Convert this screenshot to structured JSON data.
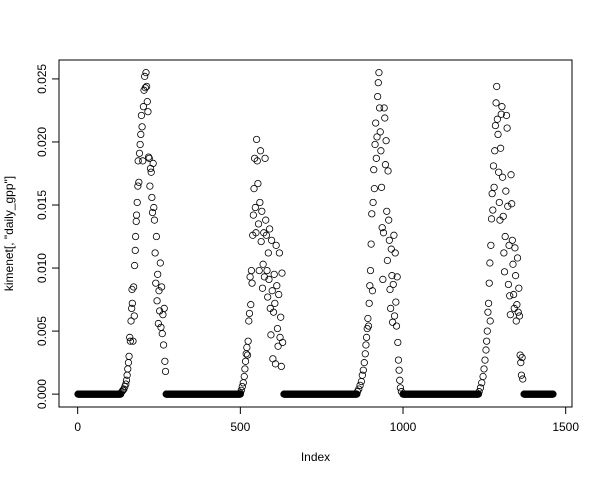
{
  "chart_data": {
    "type": "scatter",
    "title": "",
    "xlabel": "Index",
    "ylabel": "kimenet[, \"daily_gpp\"]",
    "xlim": [
      -57.4,
      1519.4
    ],
    "ylim": [
      -0.00102,
      0.0265
    ],
    "x_ticks": [
      0,
      500,
      1000,
      1500
    ],
    "x_tick_labels": [
      "0",
      "500",
      "1000",
      "1500"
    ],
    "y_ticks": [
      0,
      0.005,
      0.01,
      0.015,
      0.02,
      0.025
    ],
    "y_tick_labels": [
      "0.000",
      "0.005",
      "0.010",
      "0.015",
      "0.020",
      "0.025"
    ],
    "grid": false,
    "marker": "open-circle",
    "color": "#000000",
    "zero_runs": [
      [
        1,
        132
      ],
      [
        272,
        500
      ],
      [
        634,
        858
      ],
      [
        1000,
        1232
      ],
      [
        1372,
        1461
      ]
    ],
    "points": [
      [
        133,
        0.0001
      ],
      [
        136,
        0.0002
      ],
      [
        139,
        0.0003
      ],
      [
        142,
        0.0004
      ],
      [
        145,
        0.0006
      ],
      [
        148,
        0.0008
      ],
      [
        150,
        0.0011
      ],
      [
        152,
        0.0015
      ],
      [
        154,
        0.002
      ],
      [
        156,
        0.0025
      ],
      [
        158,
        0.003
      ],
      [
        160,
        0.0045
      ],
      [
        162,
        0.0042
      ],
      [
        164,
        0.0058
      ],
      [
        166,
        0.0068
      ],
      [
        167,
        0.0083
      ],
      [
        168,
        0.0072
      ],
      [
        170,
        0.0042
      ],
      [
        172,
        0.0085
      ],
      [
        174,
        0.0062
      ],
      [
        175,
        0.0102
      ],
      [
        177,
        0.0114
      ],
      [
        178,
        0.0125
      ],
      [
        180,
        0.0137
      ],
      [
        181,
        0.0142
      ],
      [
        183,
        0.0152
      ],
      [
        185,
        0.0165
      ],
      [
        186,
        0.0185
      ],
      [
        188,
        0.0168
      ],
      [
        190,
        0.0191
      ],
      [
        192,
        0.0198
      ],
      [
        194,
        0.0206
      ],
      [
        196,
        0.0221
      ],
      [
        198,
        0.0212
      ],
      [
        200,
        0.0185
      ],
      [
        202,
        0.0228
      ],
      [
        204,
        0.0241
      ],
      [
        206,
        0.0252
      ],
      [
        208,
        0.0243
      ],
      [
        210,
        0.0255
      ],
      [
        212,
        0.0244
      ],
      [
        214,
        0.0232
      ],
      [
        216,
        0.0224
      ],
      [
        218,
        0.0188
      ],
      [
        220,
        0.0187
      ],
      [
        222,
        0.0165
      ],
      [
        224,
        0.0179
      ],
      [
        226,
        0.0176
      ],
      [
        228,
        0.0156
      ],
      [
        230,
        0.0144
      ],
      [
        232,
        0.0183
      ],
      [
        234,
        0.0148
      ],
      [
        236,
        0.0138
      ],
      [
        238,
        0.0112
      ],
      [
        240,
        0.0088
      ],
      [
        242,
        0.0125
      ],
      [
        244,
        0.0074
      ],
      [
        246,
        0.0095
      ],
      [
        248,
        0.0056
      ],
      [
        250,
        0.0082
      ],
      [
        252,
        0.0066
      ],
      [
        254,
        0.0104
      ],
      [
        256,
        0.0053
      ],
      [
        258,
        0.0085
      ],
      [
        260,
        0.0048
      ],
      [
        262,
        0.0063
      ],
      [
        264,
        0.0039
      ],
      [
        266,
        0.0068
      ],
      [
        268,
        0.0026
      ],
      [
        270,
        0.0018
      ],
      [
        500,
        0.0001
      ],
      [
        503,
        0.0003
      ],
      [
        506,
        0.0006
      ],
      [
        509,
        0.0009
      ],
      [
        512,
        0.0014
      ],
      [
        514,
        0.002
      ],
      [
        516,
        0.0026
      ],
      [
        518,
        0.0032
      ],
      [
        520,
        0.0037
      ],
      [
        522,
        0.0031
      ],
      [
        524,
        0.0042
      ],
      [
        526,
        0.0058
      ],
      [
        528,
        0.0064
      ],
      [
        530,
        0.0093
      ],
      [
        532,
        0.0071
      ],
      [
        534,
        0.0098
      ],
      [
        536,
        0.0088
      ],
      [
        538,
        0.0126
      ],
      [
        540,
        0.0142
      ],
      [
        542,
        0.0163
      ],
      [
        544,
        0.0187
      ],
      [
        546,
        0.0148
      ],
      [
        548,
        0.0128
      ],
      [
        550,
        0.0202
      ],
      [
        552,
        0.0185
      ],
      [
        554,
        0.0167
      ],
      [
        556,
        0.0135
      ],
      [
        558,
        0.0098
      ],
      [
        560,
        0.0152
      ],
      [
        562,
        0.0193
      ],
      [
        564,
        0.0121
      ],
      [
        566,
        0.0145
      ],
      [
        568,
        0.0084
      ],
      [
        570,
        0.0103
      ],
      [
        572,
        0.0128
      ],
      [
        574,
        0.0093
      ],
      [
        576,
        0.0187
      ],
      [
        578,
        0.0138
      ],
      [
        580,
        0.0126
      ],
      [
        582,
        0.0098
      ],
      [
        584,
        0.0077
      ],
      [
        586,
        0.0112
      ],
      [
        588,
        0.0091
      ],
      [
        590,
        0.0131
      ],
      [
        592,
        0.0068
      ],
      [
        594,
        0.0047
      ],
      [
        596,
        0.0122
      ],
      [
        598,
        0.0082
      ],
      [
        600,
        0.0028
      ],
      [
        602,
        0.0065
      ],
      [
        604,
        0.0095
      ],
      [
        606,
        0.0072
      ],
      [
        608,
        0.0024
      ],
      [
        610,
        0.0118
      ],
      [
        612,
        0.0086
      ],
      [
        614,
        0.0052
      ],
      [
        616,
        0.0038
      ],
      [
        618,
        0.0079
      ],
      [
        620,
        0.0112
      ],
      [
        622,
        0.0045
      ],
      [
        624,
        0.0061
      ],
      [
        626,
        0.0022
      ],
      [
        628,
        0.0096
      ],
      [
        630,
        0.0041
      ],
      [
        860,
        0.0002
      ],
      [
        864,
        0.0004
      ],
      [
        868,
        0.0007
      ],
      [
        872,
        0.001
      ],
      [
        875,
        0.0015
      ],
      [
        878,
        0.0019
      ],
      [
        881,
        0.0025
      ],
      [
        884,
        0.0032
      ],
      [
        886,
        0.0039
      ],
      [
        888,
        0.0045
      ],
      [
        890,
        0.0052
      ],
      [
        892,
        0.006
      ],
      [
        894,
        0.0054
      ],
      [
        896,
        0.0072
      ],
      [
        898,
        0.0086
      ],
      [
        900,
        0.0098
      ],
      [
        902,
        0.0119
      ],
      [
        904,
        0.0143
      ],
      [
        906,
        0.0082
      ],
      [
        908,
        0.0152
      ],
      [
        910,
        0.0178
      ],
      [
        912,
        0.0163
      ],
      [
        914,
        0.0198
      ],
      [
        916,
        0.0215
      ],
      [
        918,
        0.0187
      ],
      [
        920,
        0.0204
      ],
      [
        922,
        0.0236
      ],
      [
        924,
        0.0247
      ],
      [
        926,
        0.0255
      ],
      [
        928,
        0.0227
      ],
      [
        930,
        0.0208
      ],
      [
        932,
        0.0193
      ],
      [
        934,
        0.0164
      ],
      [
        936,
        0.0132
      ],
      [
        938,
        0.0091
      ],
      [
        940,
        0.0128
      ],
      [
        942,
        0.0227
      ],
      [
        944,
        0.0219
      ],
      [
        946,
        0.0182
      ],
      [
        948,
        0.0201
      ],
      [
        950,
        0.0145
      ],
      [
        952,
        0.0106
      ],
      [
        954,
        0.0177
      ],
      [
        956,
        0.0138
      ],
      [
        958,
        0.0122
      ],
      [
        960,
        0.0083
      ],
      [
        962,
        0.0068
      ],
      [
        964,
        0.0115
      ],
      [
        966,
        0.0094
      ],
      [
        968,
        0.0057
      ],
      [
        970,
        0.0087
      ],
      [
        972,
        0.0126
      ],
      [
        974,
        0.0062
      ],
      [
        976,
        0.0112
      ],
      [
        978,
        0.0073
      ],
      [
        980,
        0.0054
      ],
      [
        982,
        0.0093
      ],
      [
        984,
        0.0041
      ],
      [
        986,
        0.0027
      ],
      [
        988,
        0.0019
      ],
      [
        990,
        0.0011
      ],
      [
        992,
        0.0005
      ],
      [
        995,
        0.0002
      ],
      [
        1234,
        0.0002
      ],
      [
        1238,
        0.0005
      ],
      [
        1242,
        0.0009
      ],
      [
        1246,
        0.0014
      ],
      [
        1249,
        0.002
      ],
      [
        1252,
        0.0027
      ],
      [
        1255,
        0.0035
      ],
      [
        1257,
        0.0042
      ],
      [
        1259,
        0.005
      ],
      [
        1261,
        0.0065
      ],
      [
        1263,
        0.0072
      ],
      [
        1265,
        0.0088
      ],
      [
        1267,
        0.0104
      ],
      [
        1268,
        0.0058
      ],
      [
        1270,
        0.0118
      ],
      [
        1272,
        0.0139
      ],
      [
        1274,
        0.0159
      ],
      [
        1276,
        0.0146
      ],
      [
        1278,
        0.0181
      ],
      [
        1280,
        0.0164
      ],
      [
        1282,
        0.0193
      ],
      [
        1284,
        0.0213
      ],
      [
        1286,
        0.0231
      ],
      [
        1288,
        0.0244
      ],
      [
        1290,
        0.0218
      ],
      [
        1292,
        0.0206
      ],
      [
        1294,
        0.0176
      ],
      [
        1296,
        0.0152
      ],
      [
        1298,
        0.0138
      ],
      [
        1300,
        0.0195
      ],
      [
        1302,
        0.0222
      ],
      [
        1304,
        0.0228
      ],
      [
        1306,
        0.0172
      ],
      [
        1308,
        0.0141
      ],
      [
        1310,
        0.0112
      ],
      [
        1312,
        0.0097
      ],
      [
        1314,
        0.0125
      ],
      [
        1316,
        0.0161
      ],
      [
        1318,
        0.0221
      ],
      [
        1320,
        0.0211
      ],
      [
        1322,
        0.0149
      ],
      [
        1324,
        0.0087
      ],
      [
        1326,
        0.0118
      ],
      [
        1328,
        0.0078
      ],
      [
        1330,
        0.0063
      ],
      [
        1332,
        0.0174
      ],
      [
        1334,
        0.0151
      ],
      [
        1336,
        0.0122
      ],
      [
        1338,
        0.0103
      ],
      [
        1340,
        0.0079
      ],
      [
        1342,
        0.0068
      ],
      [
        1344,
        0.0116
      ],
      [
        1346,
        0.0094
      ],
      [
        1348,
        0.0058
      ],
      [
        1350,
        0.0071
      ],
      [
        1352,
        0.0108
      ],
      [
        1354,
        0.0065
      ],
      [
        1356,
        0.0084
      ],
      [
        1358,
        0.0062
      ],
      [
        1360,
        0.0031
      ],
      [
        1362,
        0.0025
      ],
      [
        1364,
        0.0015
      ],
      [
        1366,
        0.0029
      ],
      [
        1368,
        0.0012
      ]
    ]
  }
}
